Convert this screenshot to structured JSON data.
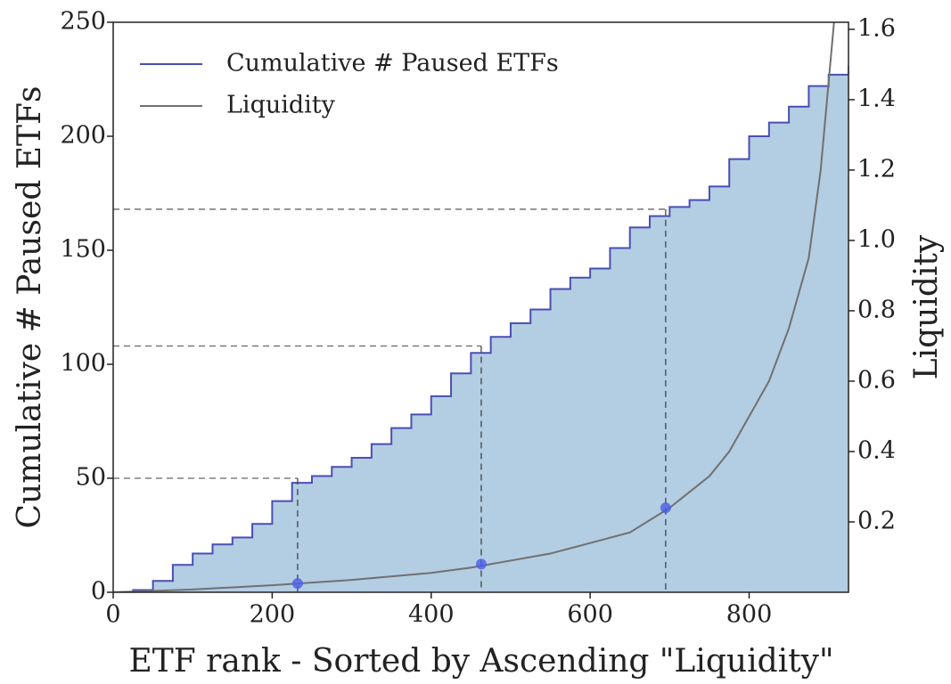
{
  "chart_data": {
    "type": "line",
    "xlabel": "ETF rank - Sorted by Ascending \"Liquidity\"",
    "ylabel": "Cumulative # Paused ETFs",
    "y2label": "Liquidity",
    "xlim": [
      0,
      925
    ],
    "ylim": [
      0,
      250
    ],
    "y2lim": [
      0,
      1.62
    ],
    "xticks": [
      0,
      200,
      400,
      600,
      800
    ],
    "yticks": [
      0,
      50,
      100,
      150,
      200,
      250
    ],
    "y2ticks": [
      0.2,
      0.4,
      0.6,
      0.8,
      {
        "value": 1,
        "label": "1.0"
      },
      1.2,
      1.4,
      1.6
    ],
    "legend": "upper left",
    "series": [
      {
        "name": "Cumulative # Paused ETFs",
        "color": "#4a4fb0",
        "fill": "#b3cde3",
        "x": [
          0,
          25,
          50,
          75,
          100,
          125,
          150,
          175,
          200,
          225,
          250,
          275,
          300,
          325,
          350,
          375,
          400,
          425,
          450,
          475,
          500,
          525,
          550,
          575,
          600,
          625,
          650,
          675,
          700,
          725,
          750,
          775,
          800,
          825,
          850,
          875,
          900,
          925
        ],
        "values": [
          0,
          1,
          5,
          12,
          17,
          21,
          24,
          30,
          40,
          48,
          51,
          55,
          59,
          65,
          72,
          78,
          86,
          96,
          105,
          112,
          118,
          124,
          133,
          138,
          142,
          151,
          160,
          165,
          169,
          172,
          178,
          190,
          200,
          206,
          213,
          222,
          227,
          231
        ]
      },
      {
        "name": "Liquidity",
        "color": "#707070",
        "axis": "y2",
        "x": [
          0,
          100,
          200,
          300,
          400,
          450,
          500,
          550,
          600,
          650,
          700,
          750,
          775,
          800,
          825,
          850,
          875,
          890,
          900,
          910
        ],
        "values": [
          0,
          0.008,
          0.02,
          0.035,
          0.055,
          0.07,
          0.09,
          0.11,
          0.14,
          0.17,
          0.24,
          0.33,
          0.4,
          0.5,
          0.6,
          0.75,
          0.95,
          1.2,
          1.45,
          1.7
        ]
      }
    ],
    "markers": [
      {
        "x": 232,
        "y": 50,
        "y2": 0.025
      },
      {
        "x": 463,
        "y": 108,
        "y2": 0.08
      },
      {
        "x": 695,
        "y": 168,
        "y2": 0.24
      }
    ],
    "marker_color": "#4b5ee8"
  }
}
